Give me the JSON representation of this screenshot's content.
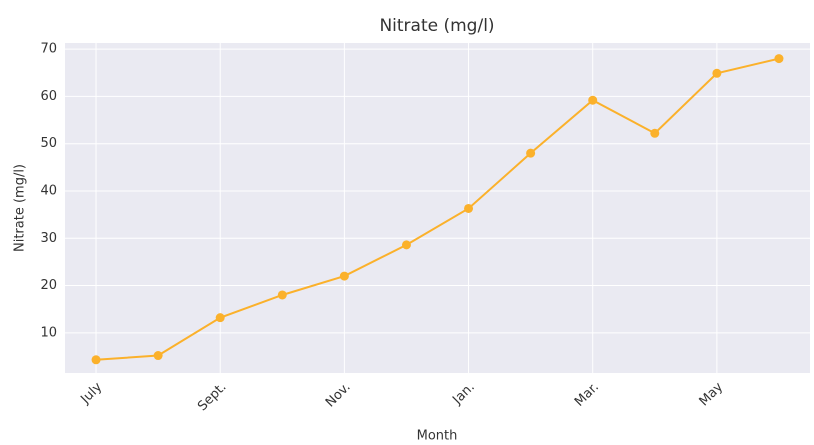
{
  "chart_data": {
    "type": "line",
    "title": "Nitrate (mg/l)",
    "x_label": "Month",
    "y_label": "Nitrate (mg/l)",
    "categories": [
      "July",
      null,
      "Sept.",
      null,
      "Nov.",
      null,
      "Jan.",
      null,
      "Mar.",
      null,
      "May",
      null
    ],
    "values": [
      4.3,
      5.2,
      13.2,
      18.0,
      22.0,
      28.6,
      36.3,
      48.0,
      59.2,
      52.2,
      64.9,
      68.0
    ],
    "color": "#fbb12b",
    "ylim": [
      1.5,
      71.3
    ],
    "yticks": [
      10,
      20,
      30,
      40,
      50,
      60,
      70
    ],
    "grid": true
  }
}
